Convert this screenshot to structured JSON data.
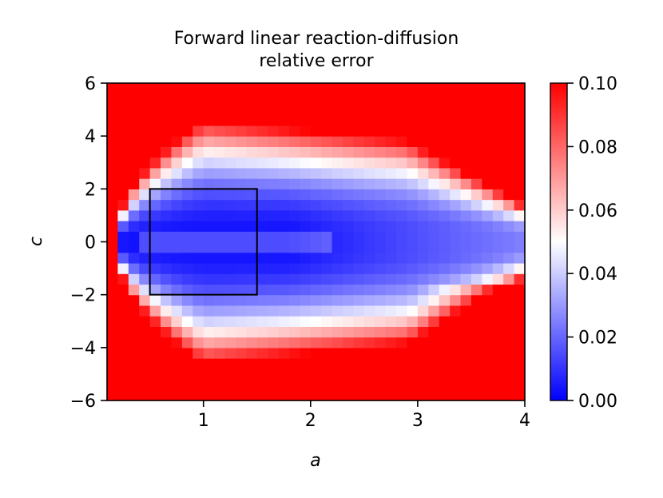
{
  "chart_data": {
    "type": "heatmap",
    "title_lines": [
      "Forward linear reaction-diffusion",
      "relative error"
    ],
    "xlabel": "a",
    "ylabel": "c",
    "xlim": [
      0.1,
      4
    ],
    "ylim": [
      -6,
      6
    ],
    "x_ticks": [
      1,
      2,
      3,
      4
    ],
    "x_tick_labels": [
      "1",
      "2",
      "3",
      "4"
    ],
    "y_ticks": [
      -6,
      -4,
      -2,
      0,
      2,
      4,
      6
    ],
    "y_tick_labels": [
      "−6",
      "−4",
      "−2",
      "0",
      "2",
      "4",
      "6"
    ],
    "grid": false,
    "grid_shape": {
      "nx": 39,
      "ny": 30
    },
    "colormap": {
      "name": "bwr",
      "low": "#0000ff",
      "mid": "#ffffff",
      "high": "#ff0000"
    },
    "colorbar": {
      "vmin": 0.0,
      "vmax": 0.1,
      "ticks": [
        0.0,
        0.02,
        0.04,
        0.06,
        0.08,
        0.1
      ],
      "tick_labels": [
        "0.00",
        "0.02",
        "0.04",
        "0.06",
        "0.08",
        "0.10"
      ]
    },
    "highlight_box": {
      "a_min": 0.5,
      "a_max": 1.5,
      "c_min": -2,
      "c_max": 2,
      "color": "#000000"
    },
    "field_description_values": {
      "inner_region_error": 0.003,
      "outer_region_error": 0.1
    }
  }
}
